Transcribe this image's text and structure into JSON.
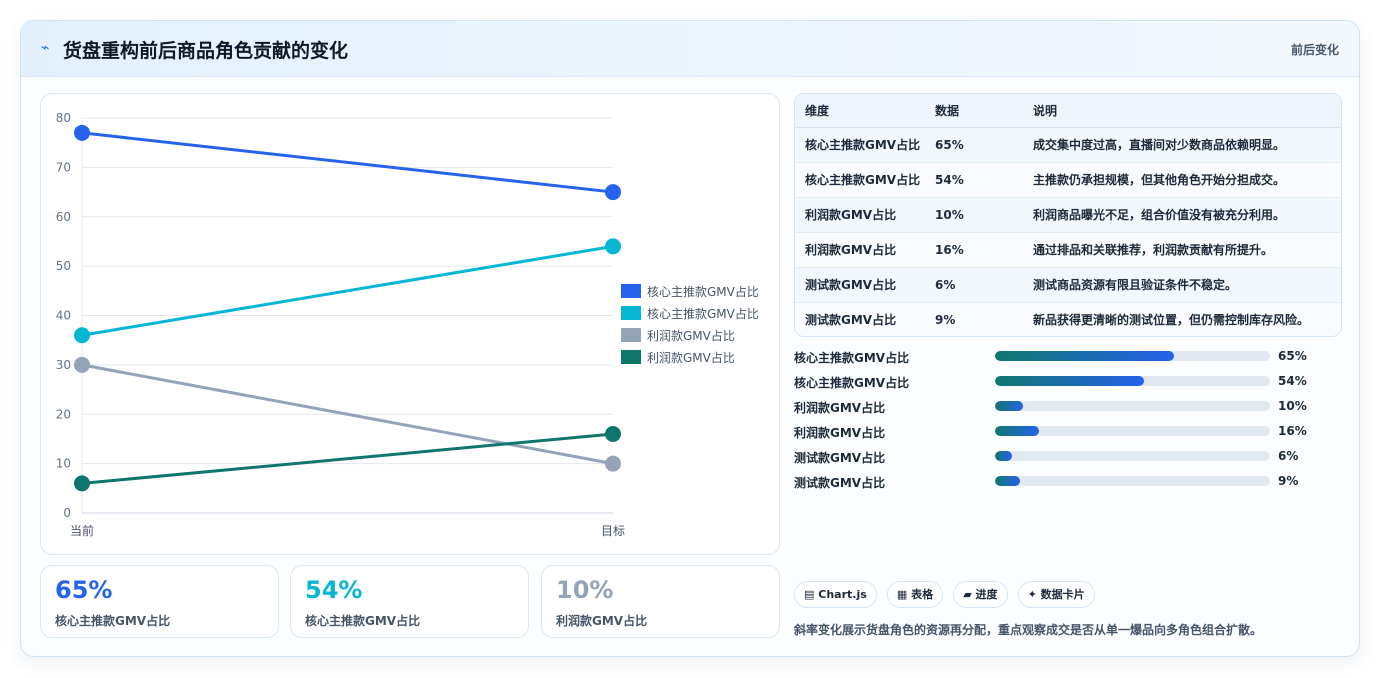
{
  "header": {
    "icon": "lightning-icon",
    "title": "货盘重构前后商品角色贡献的变化",
    "tag": "前后变化"
  },
  "chart_data": {
    "type": "line",
    "x": [
      "当前",
      "目标"
    ],
    "ylim": [
      0,
      80
    ],
    "yticks": [
      0,
      10,
      20,
      30,
      40,
      50,
      60,
      70,
      80
    ],
    "grid": true,
    "legend_position": "right",
    "series": [
      {
        "name": "核心主推款GMV占比",
        "values": [
          77,
          65
        ],
        "color": "#2563eb"
      },
      {
        "name": "核心主推款GMV占比",
        "values": [
          36,
          54
        ],
        "color": "#06b6d4"
      },
      {
        "name": "利润款GMV占比",
        "values": [
          30,
          10
        ],
        "color": "#94a3b8"
      },
      {
        "name": "利润款GMV占比",
        "values": [
          6,
          16
        ],
        "color": "#0f766e"
      }
    ]
  },
  "stats": [
    {
      "value": "65%",
      "label": "核心主推款GMV占比",
      "color": "#2563eb"
    },
    {
      "value": "54%",
      "label": "核心主推款GMV占比",
      "color": "#06b6d4"
    },
    {
      "value": "10%",
      "label": "利润款GMV占比",
      "color": "#94a3b8"
    }
  ],
  "table": {
    "headers": [
      "维度",
      "数据",
      "说明"
    ],
    "rows": [
      [
        "核心主推款GMV占比",
        "65%",
        "成交集中度过高，直播间对少数商品依赖明显。"
      ],
      [
        "核心主推款GMV占比",
        "54%",
        "主推款仍承担规模，但其他角色开始分担成交。"
      ],
      [
        "利润款GMV占比",
        "10%",
        "利润商品曝光不足，组合价值没有被充分利用。"
      ],
      [
        "利润款GMV占比",
        "16%",
        "通过排品和关联推荐，利润款贡献有所提升。"
      ],
      [
        "测试款GMV占比",
        "6%",
        "测试商品资源有限且验证条件不稳定。"
      ],
      [
        "测试款GMV占比",
        "9%",
        "新品获得更清晰的测试位置，但仍需控制库存风险。"
      ]
    ]
  },
  "bars": [
    {
      "label": "核心主推款GMV占比",
      "percent": 65,
      "value": "65%"
    },
    {
      "label": "核心主推款GMV占比",
      "percent": 54,
      "value": "54%"
    },
    {
      "label": "利润款GMV占比",
      "percent": 10,
      "value": "10%"
    },
    {
      "label": "利润款GMV占比",
      "percent": 16,
      "value": "16%"
    },
    {
      "label": "测试款GMV占比",
      "percent": 6,
      "value": "6%"
    },
    {
      "label": "测试款GMV占比",
      "percent": 9,
      "value": "9%"
    }
  ],
  "chips": [
    {
      "icon": "chart-icon",
      "glyph": "▤",
      "label": "Chart.js"
    },
    {
      "icon": "table-icon",
      "glyph": "▦",
      "label": "表格"
    },
    {
      "icon": "progress-icon",
      "glyph": "▰",
      "label": "进度"
    },
    {
      "icon": "sparkle-icon",
      "glyph": "✦",
      "label": "数据卡片"
    }
  ],
  "note": "斜率变化展示货盘角色的资源再分配，重点观察成交是否从单一爆品向多角色组合扩散。"
}
